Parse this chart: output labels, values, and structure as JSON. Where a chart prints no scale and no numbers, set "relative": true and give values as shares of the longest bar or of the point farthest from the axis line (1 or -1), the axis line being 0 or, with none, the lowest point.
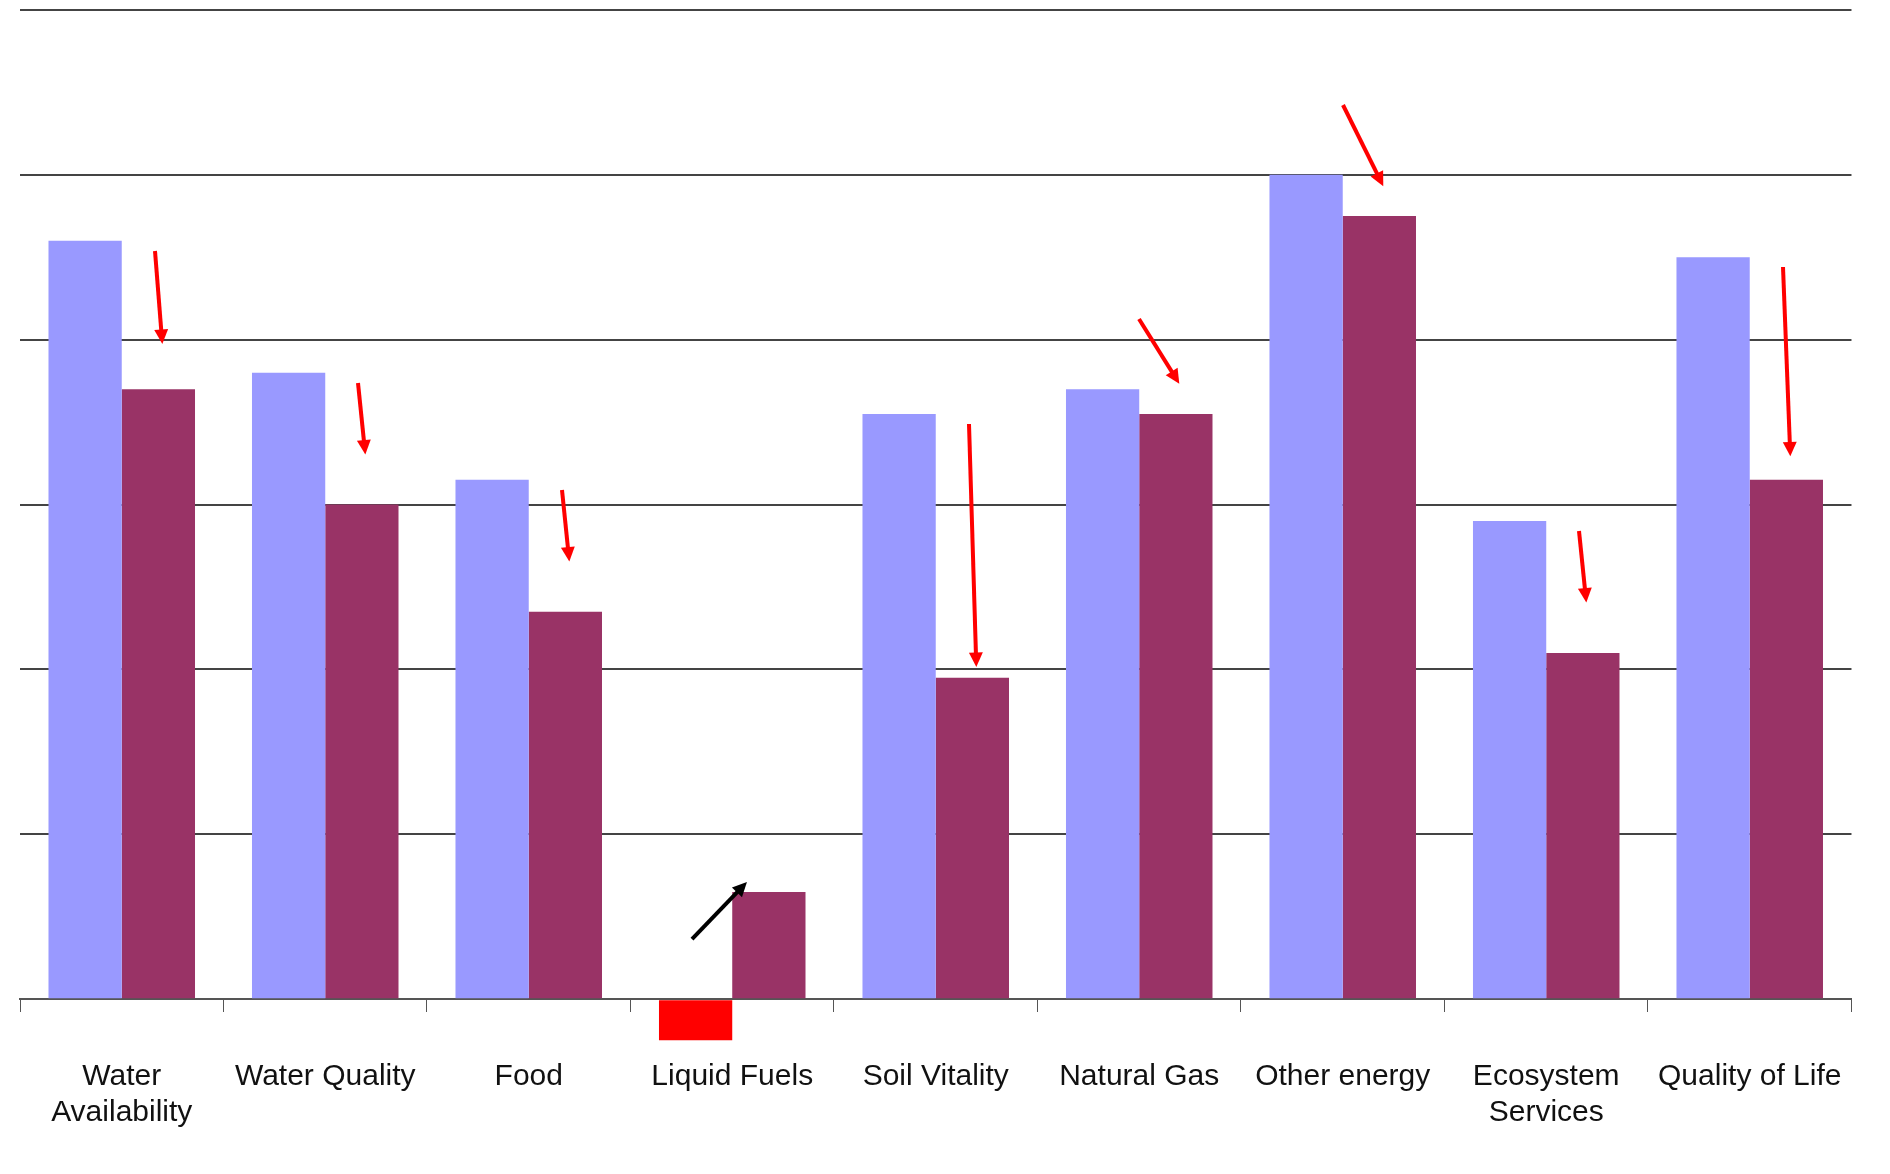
{
  "chart_data": {
    "type": "bar",
    "relative": true,
    "grid": "y",
    "categories": [
      "Water Availability",
      "Water Quality",
      "Food",
      "Liquid Fuels",
      "Soil Vitality",
      "Natural Gas",
      "Other energy",
      "Ecosystem Services",
      "Quality of Life"
    ],
    "series": [
      {
        "colors": [
          "#9999ff",
          "#9999ff",
          "#9999ff",
          "#ff0000",
          "#9999ff",
          "#9999ff",
          "#9999ff",
          "#9999ff",
          "#9999ff"
        ],
        "values": [
          0.92,
          0.76,
          0.63,
          -0.05,
          0.71,
          0.74,
          1,
          0.58,
          0.9
        ]
      },
      {
        "color": "#993366",
        "values": [
          0.74,
          0.6,
          0.47,
          0.13,
          0.39,
          0.71,
          0.95,
          0.42,
          0.63
        ]
      }
    ]
  }
}
